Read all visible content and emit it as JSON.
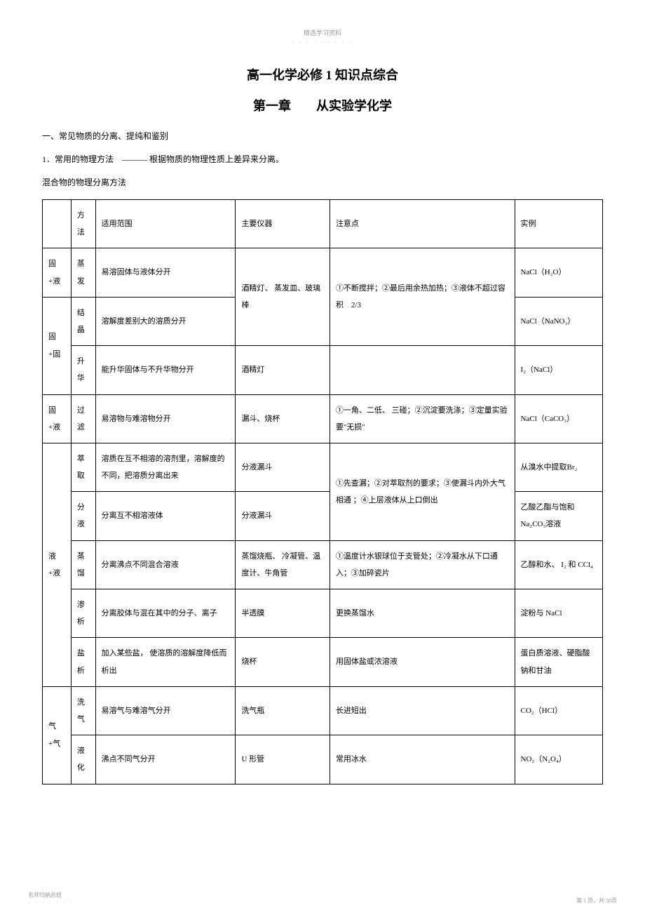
{
  "header": {
    "tiny": "精选学习资料",
    "dots": "- - - - - - - - -"
  },
  "title": "高一化学必修  1 知识点综合",
  "chapter": "第一章　　从实验学化学",
  "section1": "一、常见物质的分离、提纯和鉴别",
  "para1": "1．常用的物理方法　——— 根据物质的物理性质上差异来分离。",
  "para2": "混合物的物理分离方法",
  "table": {
    "headers": [
      "",
      "方法",
      "适用范围",
      "主要仪器",
      "注意点",
      "实例"
    ],
    "rows": [
      {
        "cat": "固+液",
        "rowspan1": 1,
        "method": "蒸发",
        "scope": "易溶固体与液体分开",
        "instr": "酒精灯、 蒸发皿、玻璃棒",
        "instr_rowspan": 2,
        "note": "①不断搅拌；②最后用余热加热；③液体不超过容积　2/3",
        "note_rowspan": 2,
        "example": "NaCl（H₂O）"
      },
      {
        "cat": "固+固",
        "rowspan1": 2,
        "method": "结晶",
        "scope": "溶解度差别大的溶质分开",
        "example": "NaCl（NaNO₃）"
      },
      {
        "method": "升华",
        "scope": "能升华固体与不升华物分开",
        "instr": "酒精灯",
        "note": "",
        "example": "I₂（NaCl）"
      },
      {
        "cat": "固+液",
        "rowspan1": 1,
        "method": "过滤",
        "scope": "易溶物与难溶物分开",
        "instr": "漏斗、烧杯",
        "note": "①一角、二低、 三碰；②沉淀要洗涤；③定量实验要\"无损\"",
        "example": "NaCl（CaCO₃）"
      },
      {
        "cat": "液+液",
        "rowspan1": 5,
        "method": "萃取",
        "scope": "溶质在互不相溶的溶剂里，溶解度的不同，把溶质分离出来",
        "instr": "分液漏斗",
        "note": "①先查漏；②对萃取剂的要求；③使漏斗内外大气相通 ；④上层液体从上口倒出",
        "note_rowspan": 2,
        "example": "从溴水中提取Br₂"
      },
      {
        "method": "分液",
        "scope": "分离互不相溶液体",
        "instr": "分液漏斗",
        "example": "乙酸乙酯与饱和 Na₂CO₃溶液"
      },
      {
        "method": "蒸馏",
        "scope": "分离沸点不同混合溶液",
        "instr": "蒸馏烧瓶、 冷凝管、温度计、牛角管",
        "note": "①温度计水银球位于支管处；②冷凝水从下口通入；③加碎瓷片",
        "example": "乙醇和水、 I₂ 和 CCl₄"
      },
      {
        "method": "渗析",
        "scope": "分离胶体与混在其中的分子、离子",
        "instr": "半透膜",
        "note": "更换蒸馏水",
        "example": "淀粉与  NaCl"
      },
      {
        "method": "盐析",
        "scope": "加入某些盐， 使溶质的溶解度降低而析出",
        "instr": "烧杯",
        "note": "用固体盐或浓溶液",
        "example": "蛋白质溶液、硬脂酸钠和甘油"
      },
      {
        "cat": "气+气",
        "rowspan1": 2,
        "method": "洗气",
        "scope": "易溶气与难溶气分开",
        "instr": "洗气瓶",
        "note": "长进短出",
        "example": "CO₂（HCl）"
      },
      {
        "method": "液化",
        "scope": "沸点不同气分开",
        "instr": "U 形管",
        "note": "常用冰水",
        "example": "NO₂（N₂O₄）"
      }
    ]
  },
  "footer": {
    "left_line1": "名师归纳总结",
    "left_dots": "- - - - - - -",
    "right": "第 1 页，共 38页"
  },
  "table_style": {
    "border_color": "#000000",
    "font_size": 11,
    "line_height": 2.2,
    "cell_padding": "10px 8px"
  }
}
